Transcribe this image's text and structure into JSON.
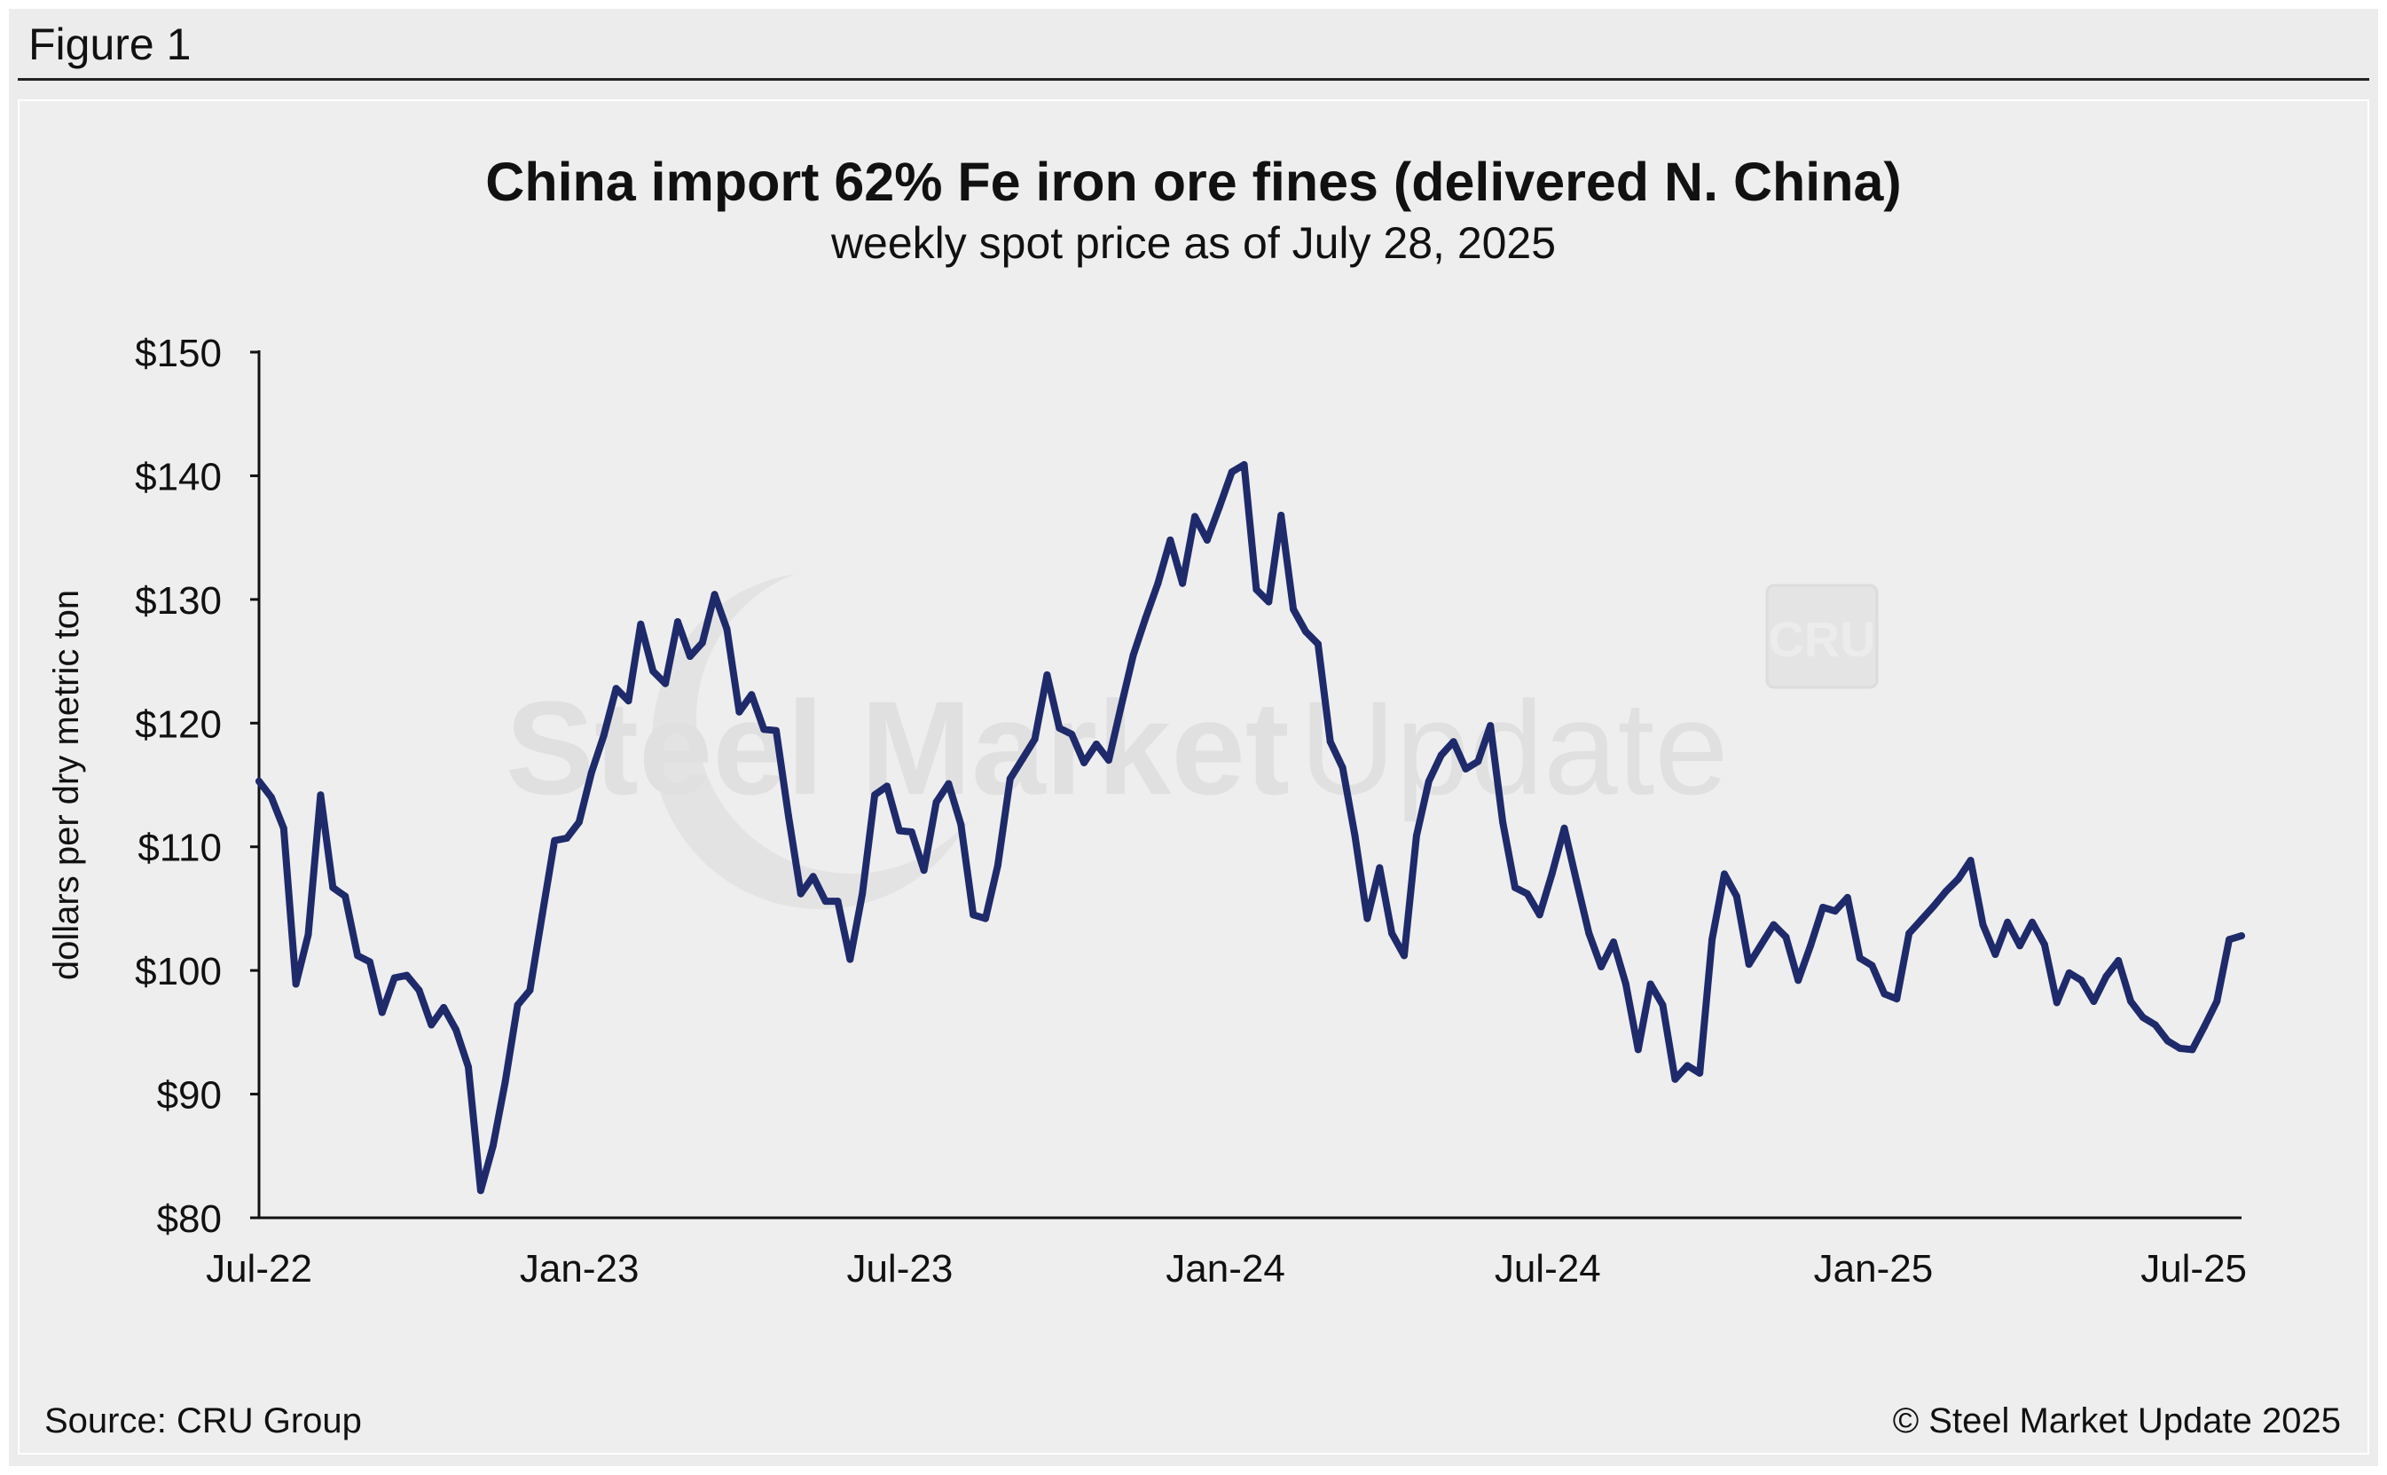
{
  "figure_label": "Figure 1",
  "source": "Source: CRU Group",
  "copyright": "© Steel Market Update 2025",
  "watermark": {
    "text_bold": "Steel Market",
    "text_light": "Update",
    "badge": "CRU"
  },
  "colors": {
    "line": "#1f2a6b",
    "background": "#eeeeee",
    "axis": "#111111"
  },
  "chart_data": {
    "type": "line",
    "title": "China import 62% Fe iron ore fines (delivered N. China)",
    "subtitle": "weekly spot price as of July 28, 2025",
    "ylabel": "dollars per dry metric ton",
    "xlabel": "",
    "ylim": [
      80,
      150
    ],
    "yticks": [
      "$80",
      "$90",
      "$100",
      "$110",
      "$120",
      "$130",
      "$140",
      "$150"
    ],
    "xtick_labels": [
      "Jul-22",
      "Jan-23",
      "Jul-23",
      "Jan-24",
      "Jul-24",
      "Jan-25",
      "Jul-25"
    ],
    "x_start": "2022-07-04",
    "x_end": "2025-07-28",
    "grid": false,
    "series": [
      {
        "values": [
          115.3,
          114.0,
          111.5,
          98.9,
          102.9,
          114.2,
          106.7,
          106.0,
          101.2,
          100.7,
          96.6,
          99.4,
          99.6,
          98.4,
          95.6,
          97.0,
          95.2,
          92.2,
          82.2,
          85.8,
          91.0,
          97.2,
          98.4,
          104.5,
          110.5,
          110.7,
          112.0,
          116.0,
          119.0,
          122.8,
          121.8,
          128.0,
          124.2,
          123.2,
          128.2,
          125.4,
          126.5,
          130.4,
          127.6,
          120.9,
          122.3,
          119.5,
          119.4,
          112.5,
          106.2,
          107.6,
          105.6,
          105.6,
          100.9,
          106.2,
          114.2,
          114.9,
          111.3,
          111.2,
          108.1,
          113.6,
          115.1,
          111.8,
          104.5,
          104.2,
          108.5,
          115.5,
          117.1,
          118.7,
          123.9,
          119.6,
          119.1,
          116.8,
          118.3,
          117.0,
          121.3,
          125.5,
          128.5,
          131.3,
          134.8,
          131.3,
          136.7,
          134.8,
          137.5,
          140.3,
          140.9,
          130.8,
          129.8,
          136.8,
          129.2,
          127.4,
          126.4,
          118.5,
          116.4,
          110.9,
          104.2,
          108.3,
          103.0,
          101.2,
          110.9,
          115.3,
          117.4,
          118.5,
          116.3,
          116.9,
          119.8,
          112.0,
          106.7,
          106.2,
          104.5,
          107.8,
          111.5,
          107.2,
          103.0,
          100.3,
          102.3,
          98.9,
          93.6,
          98.9,
          97.2,
          91.2,
          92.3,
          91.7,
          102.5,
          107.8,
          106.0,
          100.5,
          102.1,
          103.7,
          102.7,
          99.2,
          102.0,
          105.1,
          104.8,
          105.9,
          101.0,
          100.4,
          98.1,
          97.7,
          103.0,
          104.1,
          105.2,
          106.4,
          107.4,
          108.9,
          103.7,
          101.3,
          103.9,
          102.0,
          103.9,
          102.1,
          97.4,
          99.8,
          99.2,
          97.5,
          99.5,
          100.8,
          97.5,
          96.2,
          95.6,
          94.3,
          93.7,
          93.6,
          95.5,
          97.5,
          102.5,
          102.8
        ]
      }
    ]
  }
}
